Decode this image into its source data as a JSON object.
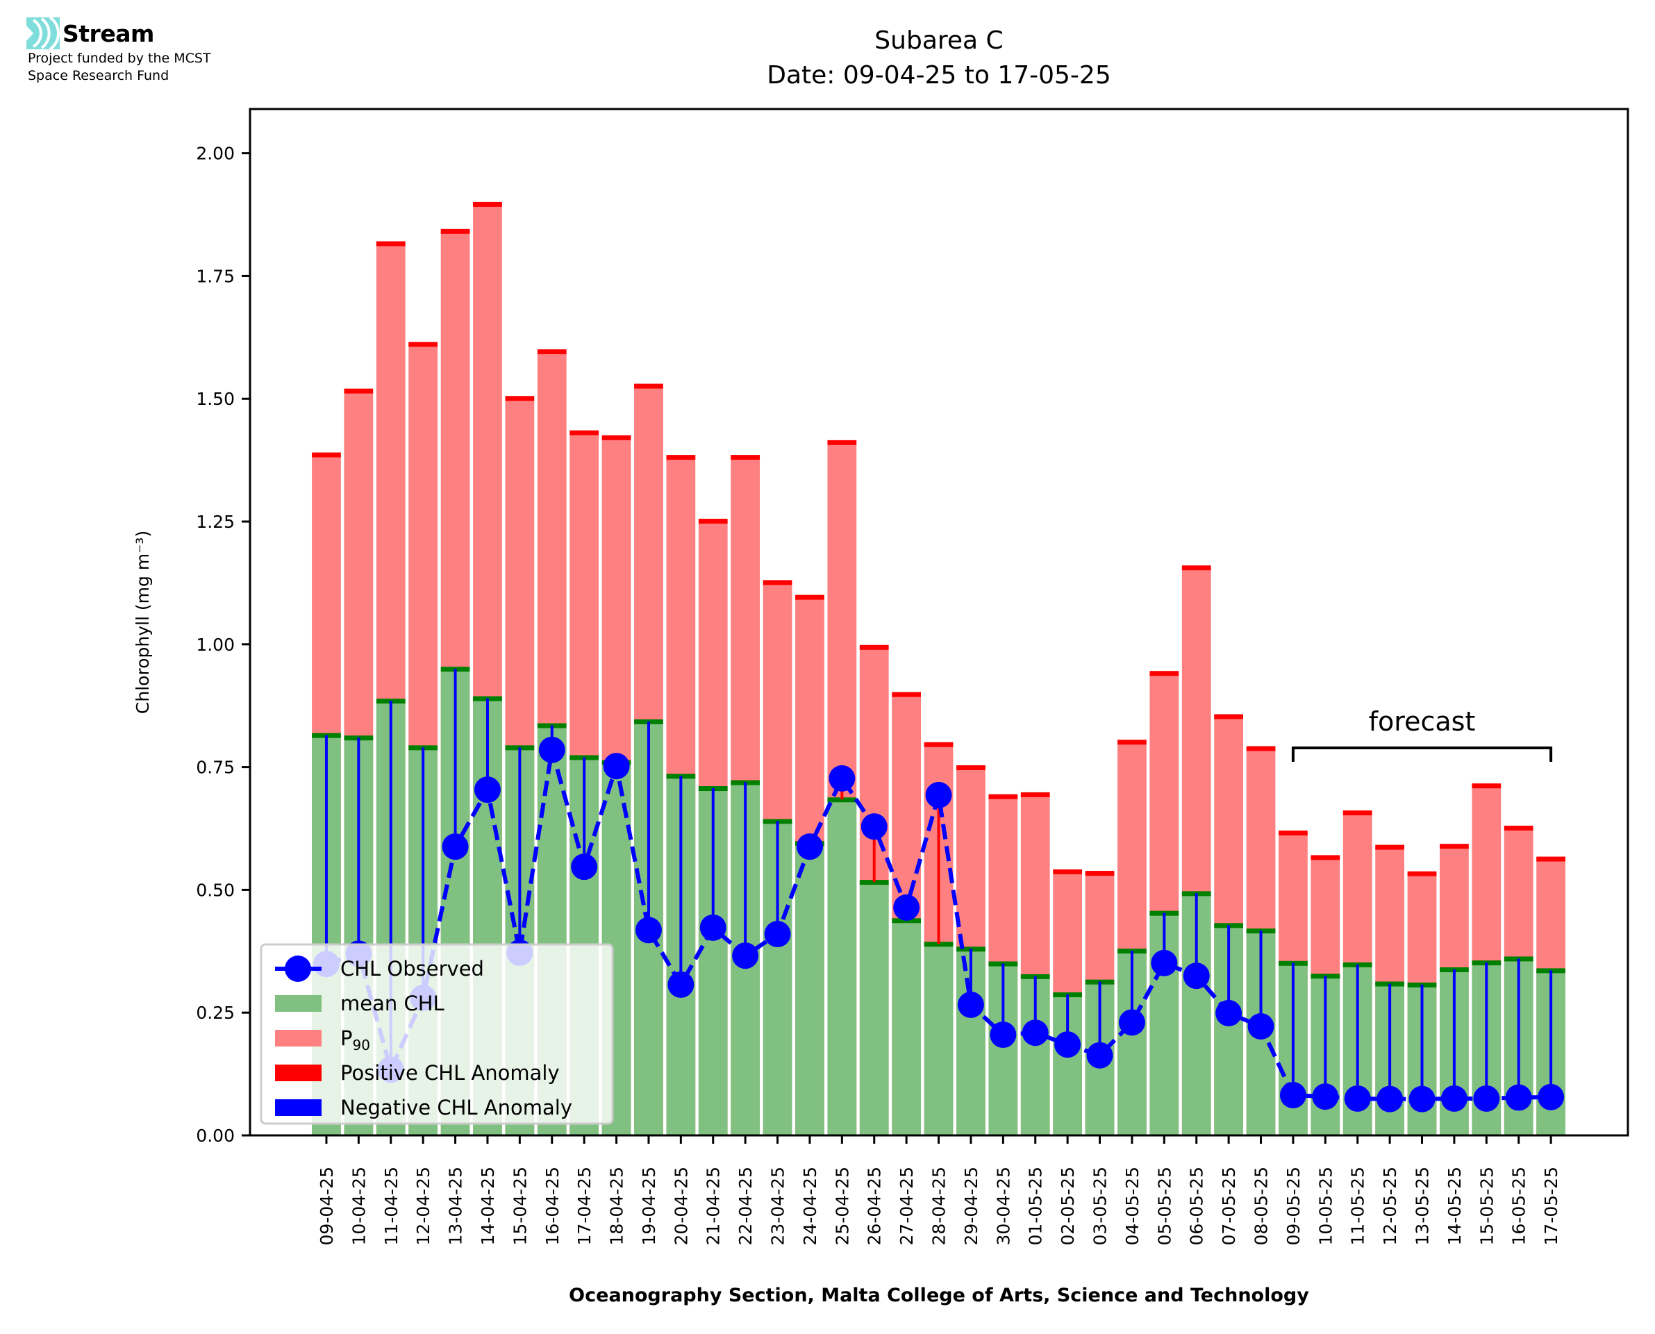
{
  "branding": {
    "name": "Stream",
    "icon": "stream-waves-icon",
    "tagline_lines": [
      "Project funded by the MCST",
      "Space Research Fund"
    ],
    "icon_color": "#7fdedc"
  },
  "chart_data": {
    "type": "bar",
    "title": "Subarea C",
    "subtitle": "Date: 09-04-25 to 17-05-25",
    "xlabel": "Oceanography Section, Malta College of Arts, Science and Technology",
    "ylabel": "Chlorophyll (mg m⁻³)",
    "ylim": [
      0,
      2.09
    ],
    "yticks": [
      0.0,
      0.25,
      0.5,
      0.75,
      1.0,
      1.25,
      1.5,
      1.75,
      2.0
    ],
    "ytick_labels": [
      "0.00",
      "0.25",
      "0.50",
      "0.75",
      "1.00",
      "1.25",
      "1.50",
      "1.75",
      "2.00"
    ],
    "grid": false,
    "categories": [
      "09-04-25",
      "10-04-25",
      "11-04-25",
      "12-04-25",
      "13-04-25",
      "14-04-25",
      "15-04-25",
      "16-04-25",
      "17-04-25",
      "18-04-25",
      "19-04-25",
      "20-04-25",
      "21-04-25",
      "22-04-25",
      "23-04-25",
      "24-04-25",
      "25-04-25",
      "26-04-25",
      "27-04-25",
      "28-04-25",
      "29-04-25",
      "30-04-25",
      "01-05-25",
      "02-05-25",
      "03-05-25",
      "04-05-25",
      "05-05-25",
      "06-05-25",
      "07-05-25",
      "08-05-25",
      "09-05-25",
      "10-05-25",
      "11-05-25",
      "12-05-25",
      "13-05-25",
      "14-05-25",
      "15-05-25",
      "16-05-25",
      "17-05-25"
    ],
    "series": [
      {
        "name": "P₉₀",
        "kind": "bar",
        "color": "#ff8080",
        "values": [
          1.385,
          1.515,
          1.815,
          1.61,
          1.84,
          1.895,
          1.5,
          1.595,
          1.43,
          1.42,
          1.525,
          1.38,
          1.25,
          1.38,
          1.125,
          1.095,
          1.41,
          0.993,
          0.897,
          0.795,
          0.748,
          0.689,
          0.693,
          0.536,
          0.533,
          0.8,
          0.94,
          1.155,
          0.852,
          0.787,
          0.615,
          0.565,
          0.656,
          0.586,
          0.532,
          0.588,
          0.711,
          0.625,
          0.562
        ]
      },
      {
        "name": "mean CHL",
        "kind": "bar",
        "color": "#80c080",
        "values": [
          0.815,
          0.81,
          0.885,
          0.79,
          0.95,
          0.89,
          0.79,
          0.835,
          0.77,
          0.76,
          0.843,
          0.732,
          0.707,
          0.719,
          0.64,
          0.595,
          0.684,
          0.516,
          0.438,
          0.39,
          0.38,
          0.35,
          0.324,
          0.287,
          0.313,
          0.376,
          0.453,
          0.493,
          0.428,
          0.417,
          0.351,
          0.325,
          0.348,
          0.309,
          0.307,
          0.338,
          0.352,
          0.36,
          0.336
        ]
      },
      {
        "name": "CHL Observed",
        "kind": "line",
        "color": "#0000ff",
        "linestyle": "dashed",
        "marker": "circle",
        "values": [
          0.349,
          0.37,
          0.134,
          0.28,
          0.588,
          0.704,
          0.372,
          0.785,
          0.547,
          0.752,
          0.418,
          0.307,
          0.423,
          0.366,
          0.41,
          0.588,
          0.727,
          0.629,
          0.464,
          0.693,
          0.266,
          0.205,
          0.209,
          0.185,
          0.163,
          0.23,
          0.351,
          0.325,
          0.249,
          0.222,
          0.082,
          0.079,
          0.075,
          0.074,
          0.074,
          0.075,
          0.075,
          0.077,
          0.078
        ]
      }
    ],
    "anomaly": {
      "positive_label": "Positive CHL Anomaly",
      "negative_label": "Negative CHL Anomaly",
      "positive_color": "#ff0000",
      "negative_color": "#0000ff",
      "definition": "observed minus mean"
    },
    "mean_edge_color": "#008000",
    "p90_edge_color": "#ff0000",
    "legend": {
      "position": "lower-left",
      "entries": [
        {
          "label": "CHL Observed",
          "type": "line-marker",
          "color": "#0000ff"
        },
        {
          "label": "mean CHL",
          "type": "patch",
          "color": "#80c080"
        },
        {
          "label": "P",
          "sub": "90",
          "type": "patch",
          "color": "#ff8080"
        },
        {
          "label": "Positive CHL Anomaly",
          "type": "patch",
          "color": "#ff0000"
        },
        {
          "label": "Negative CHL Anomaly",
          "type": "patch",
          "color": "#0000ff"
        }
      ]
    },
    "annotations": [
      {
        "text": "forecast",
        "type": "bracket",
        "from": "09-05-25",
        "to": "17-05-25"
      }
    ]
  }
}
